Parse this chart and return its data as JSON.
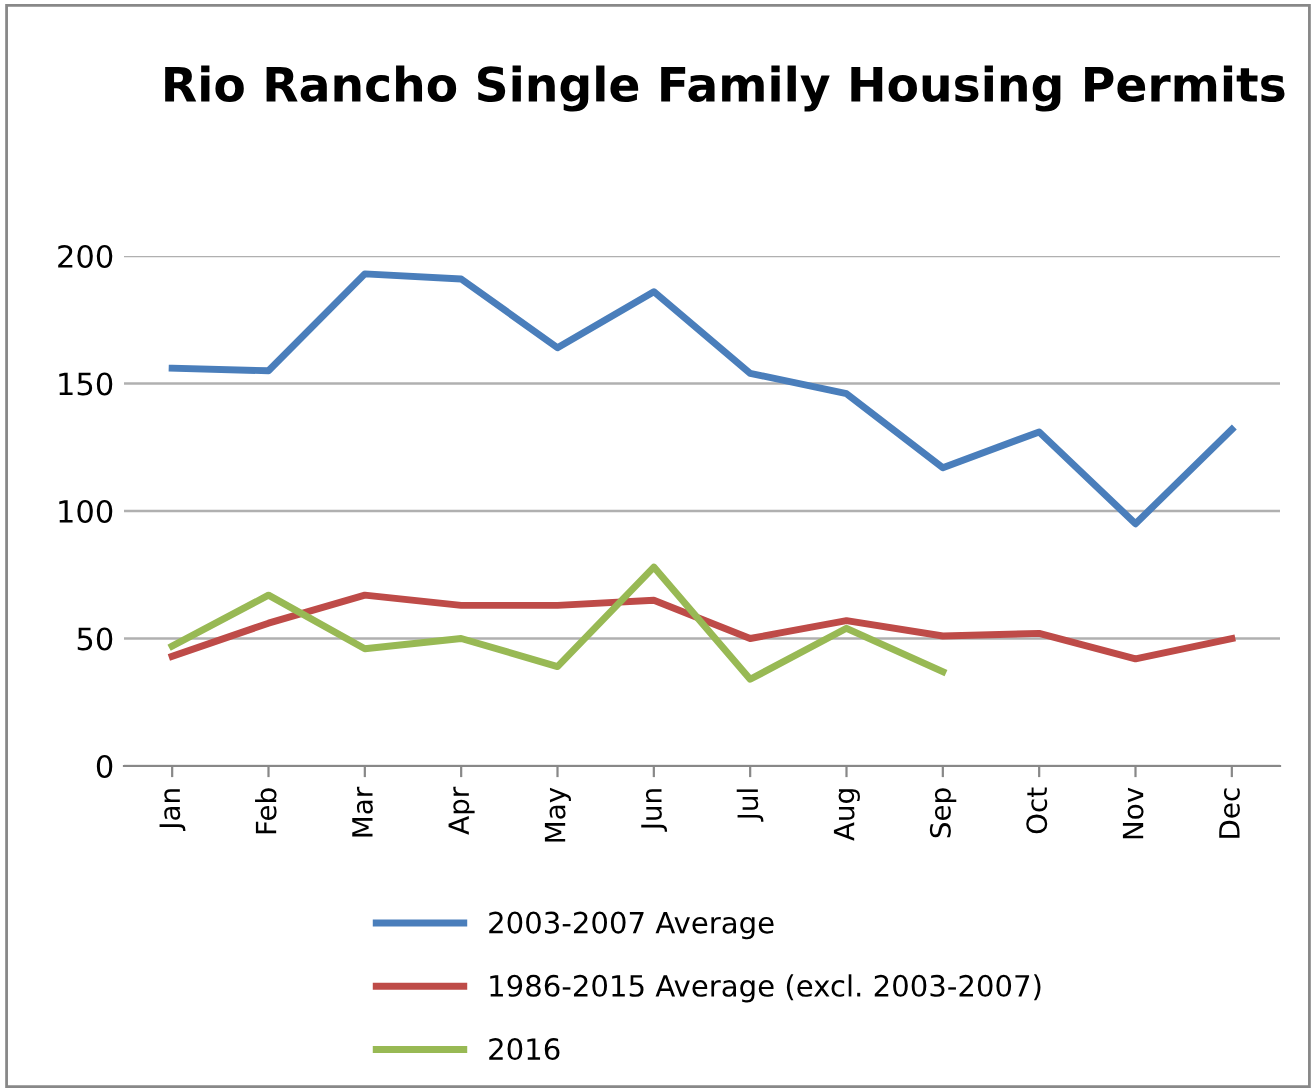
{
  "chart_data": {
    "type": "line",
    "title": "Rio Rancho Single Family Housing Permits",
    "categories": [
      "Jan",
      "Feb",
      "Mar",
      "Apr",
      "May",
      "Jun",
      "Jul",
      "Aug",
      "Sep",
      "Oct",
      "Nov",
      "Dec"
    ],
    "series": [
      {
        "name": "2003-2007 Average",
        "color": "#4a7ebb",
        "values": [
          156,
          155,
          193,
          191,
          164,
          186,
          154,
          146,
          117,
          131,
          95,
          132
        ]
      },
      {
        "name": "1986-2015 Average (excl. 2003-2007)",
        "color": "#be4b48",
        "values": [
          43,
          56,
          67,
          63,
          63,
          65,
          50,
          57,
          51,
          52,
          42,
          50
        ]
      },
      {
        "name": "2016",
        "color": "#98b954",
        "values": [
          47,
          67,
          46,
          50,
          39,
          78,
          34,
          54,
          37,
          null,
          null,
          null
        ]
      }
    ],
    "ylim": [
      0,
      200
    ],
    "yticks": [
      0,
      50,
      100,
      150,
      200
    ],
    "grid": "y",
    "legend": "bottom",
    "marker": "none",
    "line_style": "solid"
  }
}
